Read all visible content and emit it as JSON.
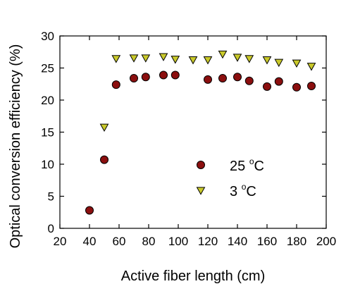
{
  "chart_data": {
    "type": "scatter",
    "title": "",
    "xlabel": "Active fiber length (cm)",
    "ylabel": "Optical conversion efficiency (%)",
    "xlim": [
      20,
      200
    ],
    "ylim": [
      0,
      30
    ],
    "xticks": [
      20,
      40,
      60,
      80,
      100,
      120,
      140,
      160,
      180,
      200
    ],
    "yticks": [
      0,
      5,
      10,
      15,
      20,
      25,
      30
    ],
    "grid": false,
    "legend_position": "lower-right",
    "series": [
      {
        "name": "25 °C",
        "label_main": "25 ",
        "label_sup": "o",
        "label_unit": "C",
        "marker": "circle",
        "color": "#8b0f0f",
        "x": [
          40,
          50,
          58,
          70,
          78,
          90,
          98,
          120,
          130,
          140,
          148,
          160,
          168,
          180,
          190
        ],
        "y": [
          2.8,
          10.7,
          22.4,
          23.4,
          23.6,
          23.9,
          23.9,
          23.2,
          23.4,
          23.6,
          23.0,
          22.1,
          22.9,
          22.0,
          22.2
        ]
      },
      {
        "name": "3 °C",
        "label_main": "3 ",
        "label_sup": "o",
        "label_unit": "C",
        "marker": "triangle-down",
        "color": "#c9c92a",
        "x": [
          50,
          58,
          70,
          78,
          90,
          98,
          110,
          120,
          130,
          140,
          148,
          160,
          168,
          180,
          190
        ],
        "y": [
          15.8,
          26.5,
          26.6,
          26.6,
          26.8,
          26.4,
          26.3,
          26.3,
          27.2,
          26.7,
          26.5,
          26.3,
          25.9,
          25.8,
          25.3
        ]
      }
    ]
  }
}
